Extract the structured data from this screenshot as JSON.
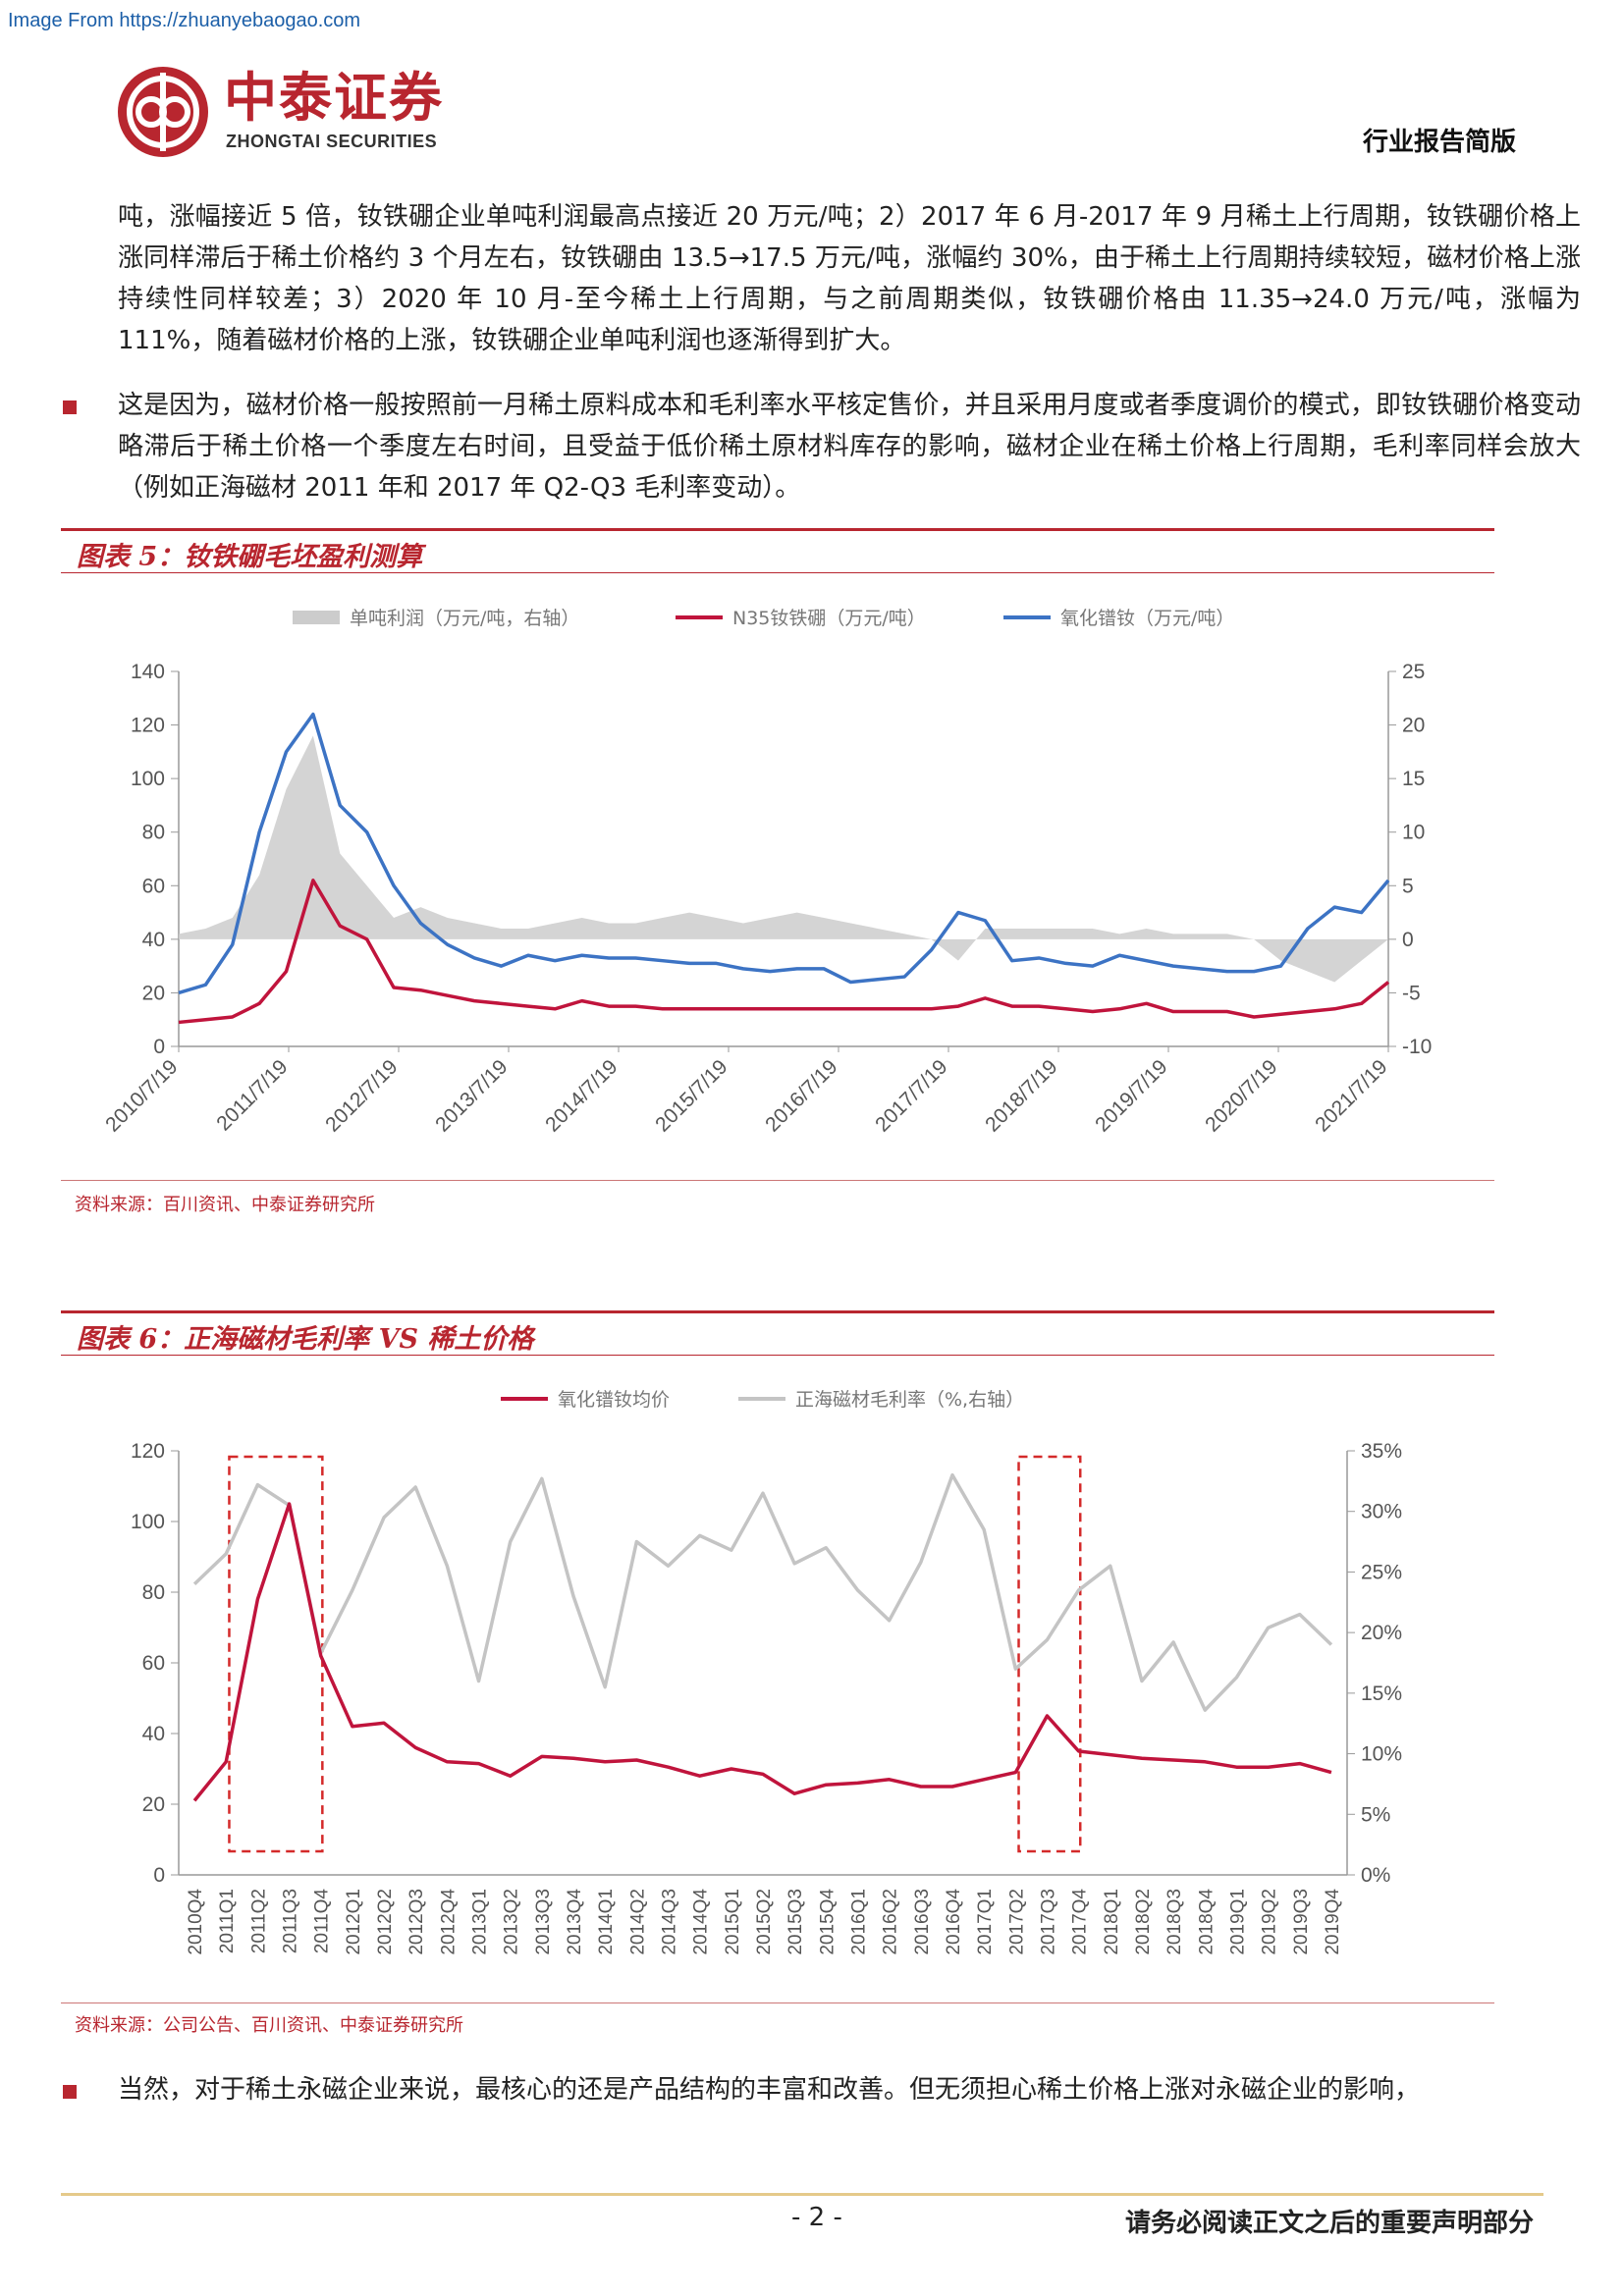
{
  "watermark": "Image From https://zhuanyebaogao.com",
  "header": {
    "logo_cn": "中泰证券",
    "logo_en": "ZHONGTAI SECURITIES",
    "doc_type": "行业报告简版"
  },
  "paragraphs": {
    "p1": "吨，涨幅接近 5 倍，钕铁硼企业单吨利润最高点接近 20 万元/吨；2）2017 年 6 月-2017 年 9 月稀土上行周期，钕铁硼价格上涨同样滞后于稀土价格约 3 个月左右，钕铁硼由 13.5→17.5 万元/吨，涨幅约 30%，由于稀土上行周期持续较短，磁材价格上涨持续性同样较差；3）2020 年 10 月-至今稀土上行周期，与之前周期类似，钕铁硼价格由 11.35→24.0 万元/吨，涨幅为 111%，随着磁材价格的上涨，钕铁硼企业单吨利润也逐渐得到扩大。",
    "p2": "这是因为，磁材价格一般按照前一月稀土原料成本和毛利率水平核定售价，并且采用月度或者季度调价的模式，即钕铁硼价格变动略滞后于稀土价格一个季度左右时间，且受益于低价稀土原材料库存的影响，磁材企业在稀土价格上行周期，毛利率同样会放大（例如正海磁材 2011 年和 2017 年 Q2-Q3 毛利率变动）。",
    "p3": "当然，对于稀土永磁企业来说，最核心的还是产品结构的丰富和改善。但无须担心稀土价格上涨对永磁企业的影响，"
  },
  "figure5": {
    "title": "图表 5：钕铁硼毛坯盈利测算",
    "source": "资料来源：百川资讯、中泰证券研究所"
  },
  "figure6": {
    "title": "图表 6：正海磁材毛利率 VS 稀土价格",
    "source": "资料来源：公司公告、百川资讯、中泰证券研究所"
  },
  "footer": {
    "page": "- 2 -",
    "note": "请务必阅读正文之后的重要声明部分"
  },
  "chart_data": [
    {
      "type": "area",
      "legend": [
        "单吨利润（万元/吨，右轴）",
        "N35钕铁硼（万元/吨）",
        "氧化镨钕（万元/吨）"
      ],
      "legend_position": "top",
      "colors": {
        "profit": "#cccccc",
        "n35": "#c0143c",
        "prnd": "#3c73c4"
      },
      "x": [
        "2010/7/19",
        "2011/1/19",
        "2011/3/19",
        "2011/5/19",
        "2011/6/19",
        "2011/7/19",
        "2011/8/19",
        "2011/9/19",
        "2011/11/19",
        "2012/1/19",
        "2012/4/19",
        "2012/7/19",
        "2012/10/19",
        "2013/1/19",
        "2013/4/19",
        "2013/7/19",
        "2013/10/19",
        "2014/1/19",
        "2014/4/19",
        "2014/7/19",
        "2014/10/19",
        "2015/1/19",
        "2015/4/19",
        "2015/7/19",
        "2015/10/19",
        "2016/1/19",
        "2016/7/19",
        "2017/1/19",
        "2017/5/19",
        "2017/7/19",
        "2017/8/19",
        "2017/10/19",
        "2018/1/19",
        "2018/7/19",
        "2018/12/19",
        "2019/5/19",
        "2019/6/19",
        "2019/8/19",
        "2019/12/19",
        "2020/4/19",
        "2020/7/19",
        "2020/10/19",
        "2021/1/19",
        "2021/4/19",
        "2021/6/19",
        "2021/7/19"
      ],
      "series": [
        {
          "name": "单吨利润（万元/吨，右轴）",
          "axis": "right",
          "values": [
            0.5,
            1,
            2,
            6,
            14,
            19,
            8,
            5,
            2,
            3,
            2,
            1.5,
            1,
            1,
            1.5,
            2,
            1.5,
            1.5,
            2,
            2.5,
            2,
            1.5,
            2,
            2.5,
            2,
            1.5,
            1,
            0.5,
            0,
            -2,
            1,
            1,
            1,
            1,
            1,
            0.5,
            1,
            0.5,
            0.5,
            0.5,
            0,
            -2,
            -3,
            -4,
            -2,
            0
          ]
        },
        {
          "name": "N35钕铁硼（万元/吨）",
          "axis": "left",
          "values": [
            9,
            10,
            11,
            16,
            28,
            62,
            45,
            40,
            22,
            21,
            19,
            17,
            16,
            15,
            14,
            17,
            15,
            15,
            14,
            14,
            14,
            14,
            14,
            14,
            14,
            14,
            14,
            14,
            14,
            15,
            18,
            15,
            15,
            14,
            13,
            14,
            16,
            13,
            13,
            13,
            11,
            12,
            13,
            14,
            16,
            24
          ]
        },
        {
          "name": "氧化镨钕（万元/吨）",
          "axis": "left",
          "values": [
            20,
            23,
            38,
            80,
            110,
            124,
            90,
            80,
            60,
            46,
            38,
            33,
            30,
            34,
            32,
            34,
            33,
            33,
            32,
            31,
            31,
            29,
            28,
            29,
            29,
            24,
            25,
            26,
            36,
            50,
            47,
            32,
            33,
            31,
            30,
            34,
            32,
            30,
            29,
            28,
            28,
            30,
            44,
            52,
            50,
            62
          ]
        }
      ],
      "xlabels": [
        "2010/7/19",
        "2011/7/19",
        "2012/7/19",
        "2013/7/19",
        "2014/7/19",
        "2015/7/19",
        "2016/7/19",
        "2017/7/19",
        "2018/7/19",
        "2019/7/19",
        "2020/7/19",
        "2021/7/19"
      ],
      "ylim_left": [
        0,
        140
      ],
      "ylim_right": [
        -10,
        25
      ],
      "yticks_left": [
        "0",
        "20",
        "40",
        "60",
        "80",
        "100",
        "120",
        "140"
      ],
      "yticks_right": [
        "-10",
        "-5",
        "0",
        "5",
        "10",
        "15",
        "20",
        "25"
      ]
    },
    {
      "type": "line",
      "legend": [
        "氧化镨钕均价",
        "正海磁材毛利率（%,右轴）"
      ],
      "legend_position": "top",
      "colors": {
        "prnd": "#c0143c",
        "margin": "#c4c4c4",
        "box": "#d42a2a"
      },
      "categories": [
        "2010Q4",
        "2011Q1",
        "2011Q2",
        "2011Q3",
        "2011Q4",
        "2012Q1",
        "2012Q2",
        "2012Q3",
        "2012Q4",
        "2013Q1",
        "2013Q2",
        "2013Q3",
        "2013Q4",
        "2014Q1",
        "2014Q2",
        "2014Q3",
        "2014Q4",
        "2015Q1",
        "2015Q2",
        "2015Q3",
        "2015Q4",
        "2016Q1",
        "2016Q2",
        "2016Q3",
        "2016Q4",
        "2017Q1",
        "2017Q2",
        "2017Q3",
        "2017Q4",
        "2018Q1",
        "2018Q2",
        "2018Q3",
        "2018Q4",
        "2019Q1",
        "2019Q2",
        "2019Q3",
        "2019Q4"
      ],
      "series": [
        {
          "name": "氧化镨钕均价",
          "axis": "left",
          "values": [
            21,
            32,
            78,
            105,
            62,
            42,
            43,
            36,
            32,
            31.5,
            28,
            33.5,
            33,
            32,
            32.5,
            30.5,
            28,
            30,
            28.5,
            23,
            25.5,
            26,
            27,
            25,
            25,
            27,
            29,
            45,
            35,
            34,
            33,
            32.5,
            32,
            30.5,
            30.5,
            31.5,
            29
          ]
        },
        {
          "name": "正海磁材毛利率（%,右轴）",
          "axis": "right",
          "values": [
            24,
            26.5,
            32.2,
            30.5,
            18.3,
            23.5,
            29.5,
            32,
            25.5,
            16,
            27.5,
            32.7,
            23,
            15.5,
            27.5,
            25.5,
            28,
            26.8,
            31.5,
            25.7,
            27,
            23.5,
            21,
            25.8,
            33,
            28.5,
            17,
            19.4,
            23.5,
            25.5,
            16,
            19.2,
            13.6,
            16.3,
            20.4,
            21.5,
            19
          ]
        }
      ],
      "highlight_boxes": [
        [
          "2011Q1",
          "2011Q4"
        ],
        [
          "2017Q2",
          "2017Q4"
        ]
      ],
      "ylim_left": [
        0,
        120
      ],
      "ylim_right": [
        0,
        35
      ],
      "yticks_left": [
        "0",
        "20",
        "40",
        "60",
        "80",
        "100",
        "120"
      ],
      "yticks_right": [
        "0%",
        "5%",
        "10%",
        "15%",
        "20%",
        "25%",
        "30%",
        "35%"
      ]
    }
  ]
}
